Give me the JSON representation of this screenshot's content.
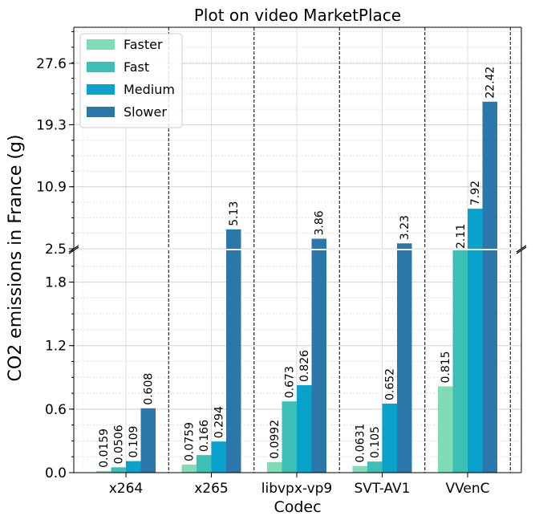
{
  "chart_data": {
    "type": "bar",
    "title": "Plot on video MarketPlace",
    "xlabel": "Codec",
    "ylabel": "CO2 emissions in France (g)",
    "categories": [
      "x264",
      "x265",
      "libvpx-vp9",
      "SVT-AV1",
      "VVenC"
    ],
    "series": [
      {
        "name": "Faster",
        "color": "#7fdcb4",
        "values": [
          0.0159,
          0.0759,
          0.0992,
          0.0631,
          0.815
        ],
        "labels": [
          "0.0159",
          "0.0759",
          "0.0992",
          "0.0631",
          "0.815"
        ]
      },
      {
        "name": "Fast",
        "color": "#3bbfb6",
        "values": [
          0.0506,
          0.166,
          0.673,
          0.105,
          2.11
        ],
        "labels": [
          "0.0506",
          "0.166",
          "0.673",
          "0.105",
          "2.11"
        ]
      },
      {
        "name": "Medium",
        "color": "#08a2cc",
        "values": [
          0.109,
          0.294,
          0.826,
          0.652,
          7.92
        ],
        "labels": [
          "0.109",
          "0.294",
          "0.826",
          "0.652",
          "7.92"
        ]
      },
      {
        "name": "Slower",
        "color": "#2c77aa",
        "values": [
          0.608,
          5.13,
          3.86,
          3.23,
          22.42
        ],
        "labels": [
          "0.608",
          "5.13",
          "3.86",
          "3.23",
          "22.42"
        ]
      }
    ],
    "broken_axis": {
      "lower": {
        "ylim": [
          0.0,
          2.1
        ],
        "ticks": [
          0.0,
          0.6,
          1.2,
          1.8
        ],
        "tick_labels": [
          "0.0",
          "0.6",
          "1.2",
          "1.8"
        ]
      },
      "upper": {
        "ylim": [
          2.5,
          32.5
        ],
        "ticks": [
          2.5,
          10.9,
          19.3,
          27.6
        ],
        "tick_labels": [
          "2.5",
          "10.9",
          "19.3",
          "27.6"
        ]
      }
    },
    "grid": true,
    "legend_position": "top-left",
    "group_separators": "dashed vertical lines"
  }
}
